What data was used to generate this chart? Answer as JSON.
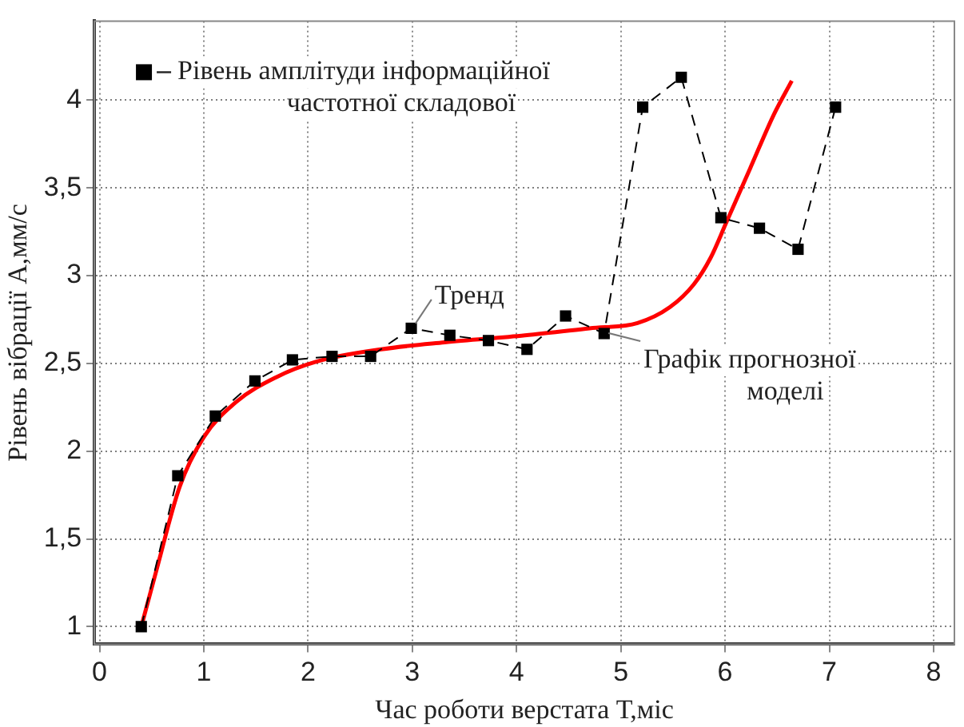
{
  "chart_data": {
    "type": "line",
    "xlabel": "Час роботи верстата Т,міс",
    "ylabel": "Рівень вібрації А,мм/с",
    "xlim": [
      -0.05,
      8.2
    ],
    "xticks": [
      0,
      1,
      2,
      3,
      4,
      5,
      6,
      7,
      8
    ],
    "ylim": [
      0.9,
      4.45
    ],
    "yticks": [
      1,
      {
        "value": 1.5,
        "label": "1,5"
      },
      2,
      {
        "value": 2.5,
        "label": "2,5"
      },
      3,
      {
        "value": 3.5,
        "label": "3,5"
      },
      4
    ],
    "grid": true,
    "legend": "top left",
    "series": [
      {
        "name": "Рівень амплітуди інформаційної частотної складової",
        "color": "#000000",
        "marker": "square",
        "line_style": "dashed",
        "x": [
          0.4,
          0.75,
          1.11,
          1.49,
          1.85,
          2.23,
          2.6,
          2.99,
          3.36,
          3.73,
          4.1,
          4.47,
          4.84,
          5.21,
          5.58,
          5.96,
          6.33,
          6.7,
          7.06
        ],
        "values": [
          1.0,
          1.86,
          2.2,
          2.4,
          2.52,
          2.54,
          2.54,
          2.7,
          2.66,
          2.63,
          2.58,
          2.77,
          2.67,
          3.96,
          4.13,
          3.33,
          3.27,
          3.15,
          3.96
        ]
      },
      {
        "color": "#ff0000",
        "marker": "none",
        "line_style": "solid",
        "x": [
          0.4,
          0.54,
          0.77,
          1.0,
          1.31,
          1.69,
          2.08,
          2.7,
          3.31,
          4.08,
          4.7,
          5.16,
          5.47,
          5.7,
          5.86,
          6.01,
          6.24,
          6.47,
          6.64
        ],
        "values": [
          1.0,
          1.31,
          1.8,
          2.08,
          2.28,
          2.42,
          2.51,
          2.58,
          2.62,
          2.66,
          2.7,
          2.73,
          2.82,
          2.95,
          3.1,
          3.3,
          3.61,
          3.92,
          4.11
        ]
      }
    ],
    "annotations": [
      {
        "text": "Тренд",
        "x": 3.0,
        "y": 2.7
      },
      {
        "text": "Графік прогнозної моделі",
        "x": 4.85,
        "y": 2.7
      }
    ]
  }
}
